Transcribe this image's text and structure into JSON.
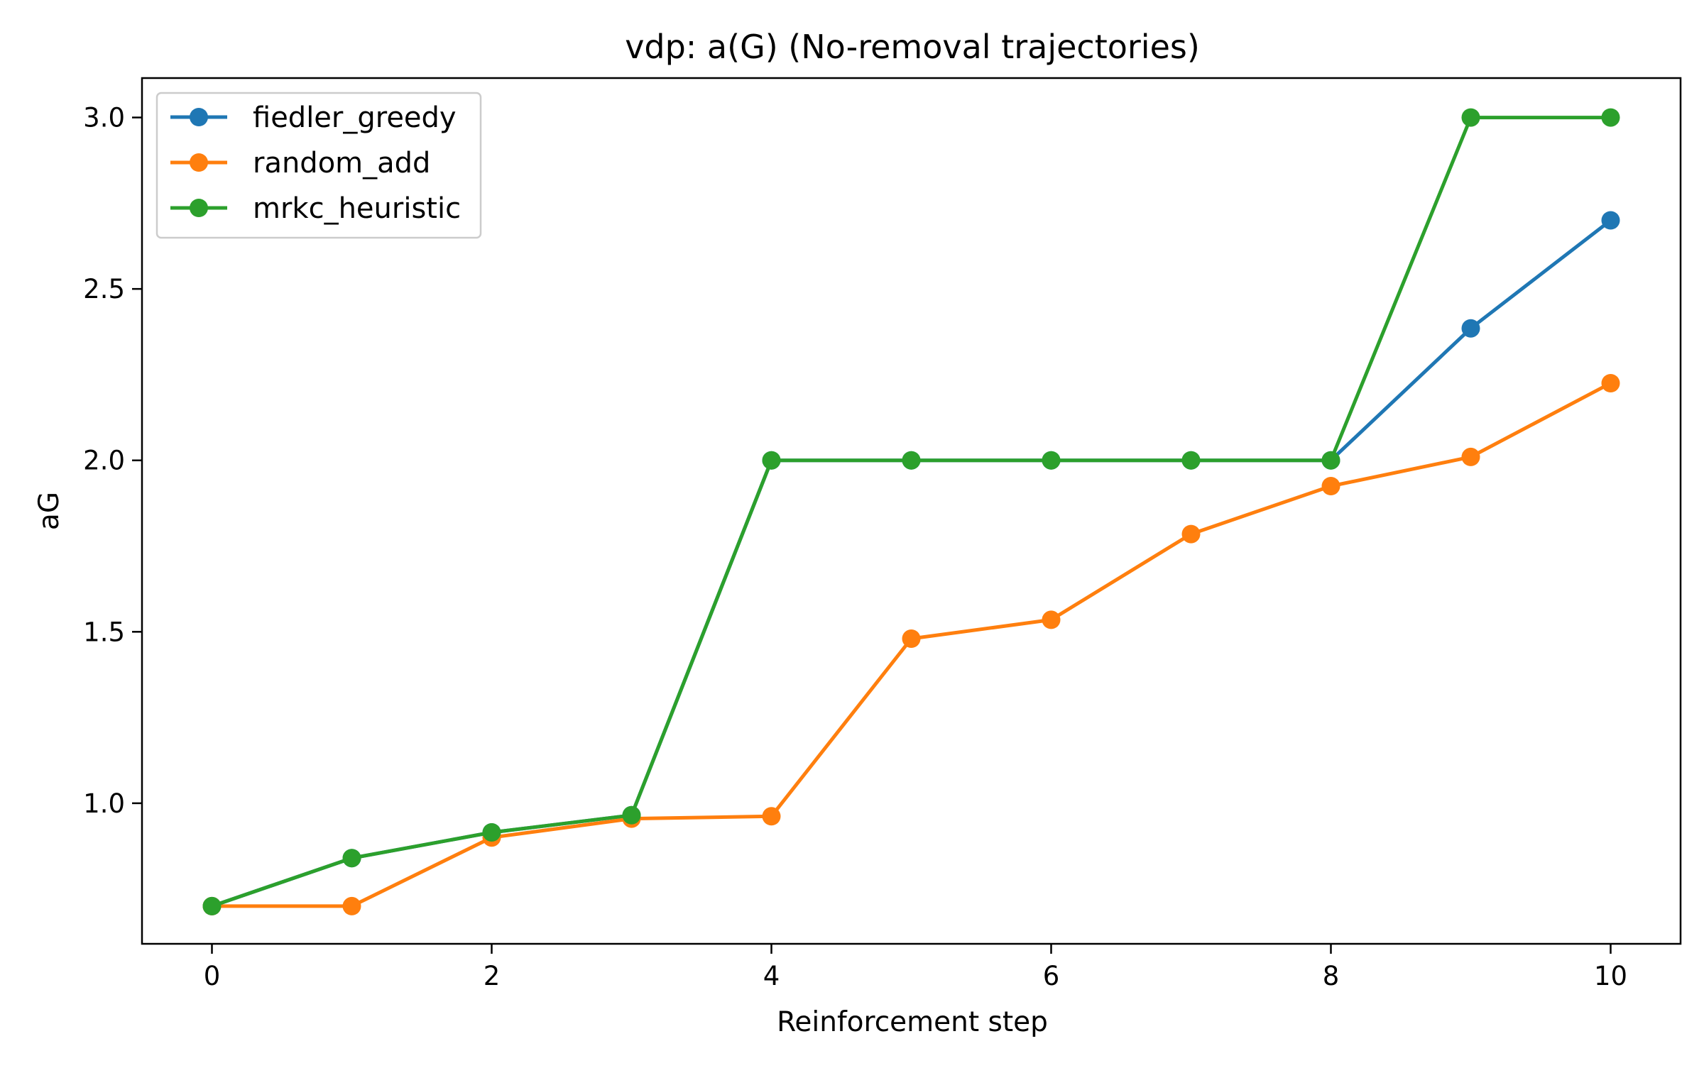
{
  "chart_data": {
    "type": "line",
    "title": "vdp: a(G) (No-removal trajectories)",
    "xlabel": "Reinforcement step",
    "ylabel": "aG",
    "xlim": [
      -0.5,
      10.5
    ],
    "ylim": [
      0.59,
      3.115
    ],
    "xticks": [
      0,
      2,
      4,
      6,
      8,
      10
    ],
    "xtick_labels": [
      "0",
      "2",
      "4",
      "6",
      "8",
      "10"
    ],
    "yticks": [
      1.0,
      1.5,
      2.0,
      2.5,
      3.0
    ],
    "ytick_labels": [
      "1.0",
      "1.5",
      "2.0",
      "2.5",
      "3.0"
    ],
    "grid": false,
    "legend_position": "upper left",
    "x": [
      0,
      1,
      2,
      3,
      4,
      5,
      6,
      7,
      8,
      9,
      10
    ],
    "series": [
      {
        "name": "fiedler_greedy",
        "color": "#1f77b4",
        "marker": "circle",
        "values": [
          0.7,
          0.84,
          0.915,
          0.965,
          2.0,
          2.0,
          2.0,
          2.0,
          2.0,
          2.385,
          2.7
        ]
      },
      {
        "name": "random_add",
        "color": "#ff7f0e",
        "marker": "circle",
        "values": [
          0.7,
          0.7,
          0.9,
          0.955,
          0.962,
          1.48,
          1.535,
          1.785,
          1.925,
          2.01,
          2.225
        ]
      },
      {
        "name": "mrkc_heuristic",
        "color": "#2ca02c",
        "marker": "circle",
        "values": [
          0.7,
          0.84,
          0.915,
          0.965,
          2.0,
          2.0,
          2.0,
          2.0,
          2.0,
          3.0,
          3.0
        ]
      }
    ]
  }
}
